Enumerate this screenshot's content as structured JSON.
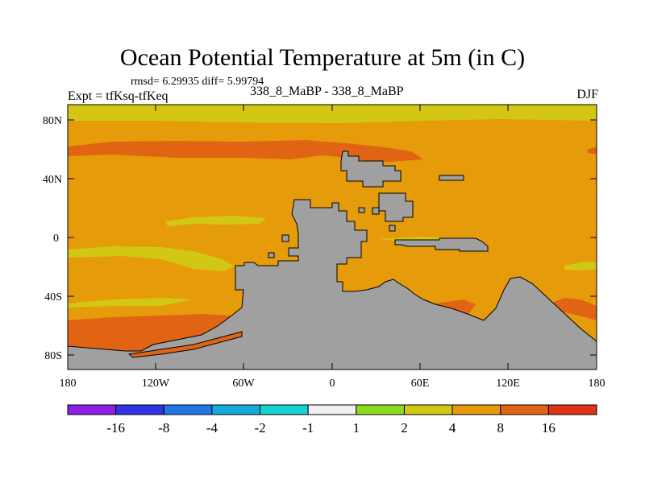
{
  "title": "Ocean Potential Temperature at 5m (in C)",
  "stats_line": "rmsd= 6.29935 diff= 5.99794",
  "left_label": "Expt = tfKsq-tfKeq",
  "center_label": "338_8_MaBP - 338_8_MaBP",
  "right_label": "DJF",
  "axes": {
    "lat_ticks": [
      "80N",
      "40N",
      "0",
      "40S",
      "80S"
    ],
    "lon_ticks": [
      "180",
      "120W",
      "60W",
      "0",
      "60E",
      "120E",
      "180"
    ]
  },
  "colorbar": {
    "boundary_labels": [
      "-16",
      "-8",
      "-4",
      "-2",
      "-1",
      "1",
      "2",
      "4",
      "8",
      "16"
    ],
    "colors": [
      "#8c1ee6",
      "#3232e6",
      "#1e78e6",
      "#14aadc",
      "#14d2d2",
      "#f0f0f0",
      "#8cdc1e",
      "#d2c814",
      "#e69b0a",
      "#e06414",
      "#e03214"
    ]
  },
  "map_colors": {
    "background_band": "#e69b0a",
    "warm_band": "#e06414",
    "cool_band": "#d2c814",
    "land": "#a0a0a0"
  }
}
